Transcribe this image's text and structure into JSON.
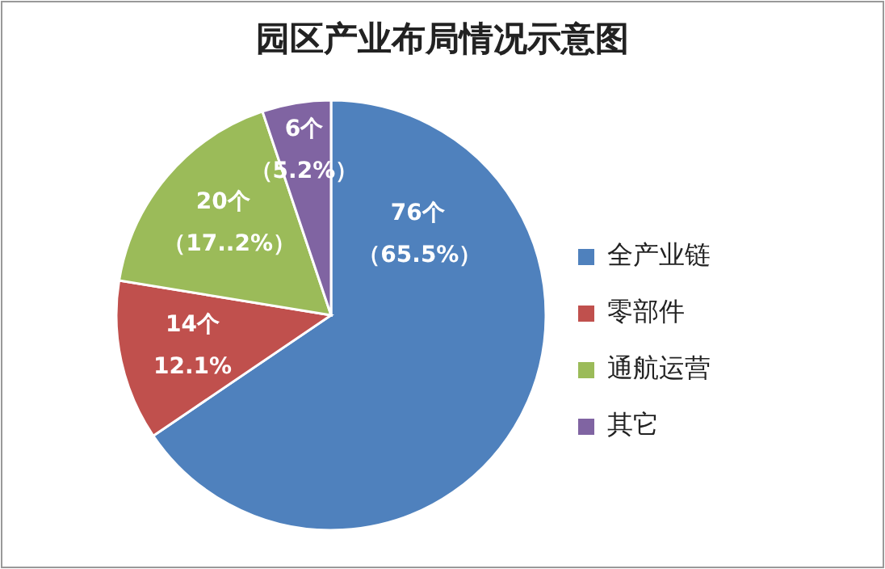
{
  "chart_data": {
    "type": "pie",
    "title": "园区产业布局情况示意图",
    "categories": [
      "全产业链",
      "零部件",
      "通航运营",
      "其它"
    ],
    "values": [
      76,
      14,
      20,
      6
    ],
    "colors": [
      "#4f81bd",
      "#c0504d",
      "#9bbb59",
      "#8064a2"
    ],
    "value_labels": [
      "76个（65.5%）",
      "14个12.1%",
      "20个（17..2%）",
      "6个（5.2%）"
    ],
    "legend": "right"
  }
}
